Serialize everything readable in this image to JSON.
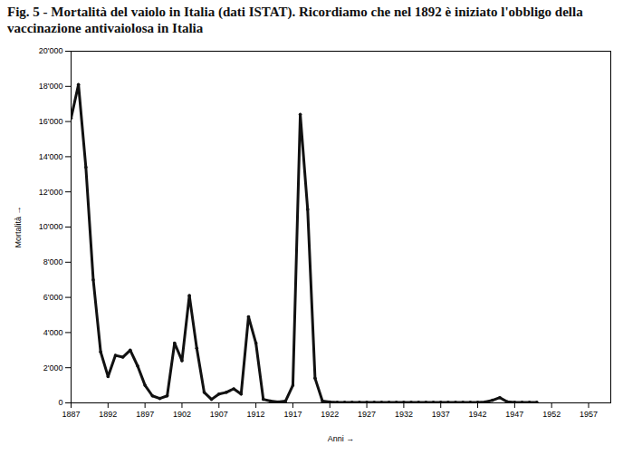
{
  "chart_data": {
    "type": "line",
    "title": "Fig. 5 - Mortalità del vaiolo in Italia (dati ISTAT). Ricordiamo che nel 1892 è iniziato l'obbligo della vaccinazione antivaiolosa in Italia",
    "x_label": "Anni",
    "y_label": "Mortalità",
    "x": [
      1887,
      1888,
      1889,
      1890,
      1891,
      1892,
      1893,
      1894,
      1895,
      1896,
      1897,
      1898,
      1899,
      1900,
      1901,
      1902,
      1903,
      1904,
      1905,
      1906,
      1907,
      1908,
      1909,
      1910,
      1911,
      1912,
      1913,
      1914,
      1915,
      1916,
      1917,
      1918,
      1919,
      1920,
      1921,
      1922,
      1923,
      1924,
      1925,
      1926,
      1927,
      1928,
      1929,
      1930,
      1931,
      1932,
      1933,
      1934,
      1935,
      1936,
      1937,
      1938,
      1939,
      1940,
      1941,
      1942,
      1943,
      1944,
      1945,
      1946,
      1947,
      1948,
      1949,
      1950
    ],
    "values": [
      16200,
      18100,
      13400,
      7000,
      2900,
      1500,
      2700,
      2600,
      3000,
      2100,
      1000,
      400,
      250,
      400,
      3400,
      2400,
      6100,
      3100,
      600,
      200,
      500,
      600,
      800,
      500,
      4900,
      3400,
      200,
      100,
      50,
      100,
      1000,
      16400,
      11000,
      1400,
      100,
      50,
      30,
      30,
      30,
      30,
      30,
      30,
      30,
      30,
      30,
      30,
      30,
      30,
      30,
      30,
      30,
      30,
      30,
      30,
      30,
      30,
      50,
      150,
      300,
      60,
      30,
      30,
      30,
      30
    ],
    "color": "#111111",
    "xlim": [
      1887,
      1960
    ],
    "xticks": [
      1887,
      1892,
      1897,
      1902,
      1907,
      1912,
      1917,
      1922,
      1927,
      1932,
      1937,
      1942,
      1947,
      1952,
      1957
    ],
    "ylim": [
      0,
      20000
    ],
    "yticks": [
      0,
      {
        "value": 2000,
        "label": "2'000"
      },
      {
        "value": 4000,
        "label": "4'000"
      },
      {
        "value": 6000,
        "label": "6'000"
      },
      {
        "value": 8000,
        "label": "8'000"
      },
      {
        "value": 10000,
        "label": "10'000"
      },
      {
        "value": 12000,
        "label": "12'000"
      },
      {
        "value": 14000,
        "label": "14'000"
      },
      {
        "value": 16000,
        "label": "16'000"
      },
      {
        "value": 18000,
        "label": "18'000"
      },
      {
        "value": 20000,
        "label": "20'000"
      }
    ],
    "grid": false,
    "marker": "circle"
  }
}
